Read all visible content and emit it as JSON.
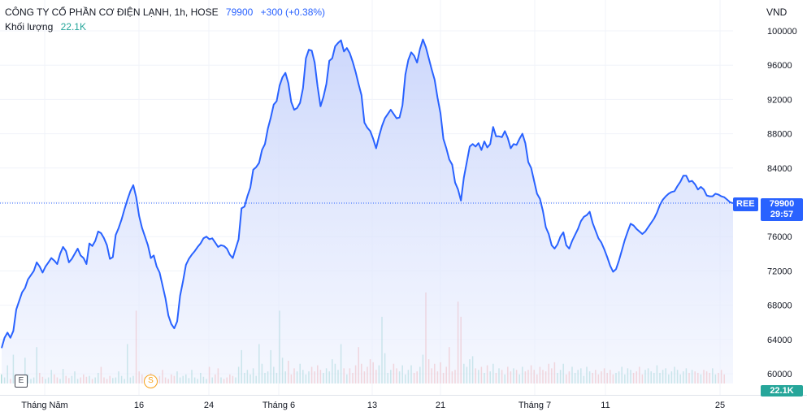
{
  "legend": {
    "title": "CÔNG TY CỔ PHẦN CƠ ĐIỆN LẠNH, 1h, HOSE",
    "price": "79900",
    "change": "+300 (+0.38%)",
    "volume_label": "Khối lượng",
    "volume_value": "22.1K"
  },
  "axis": {
    "currency": "VND"
  },
  "tags": {
    "symbol": "REE",
    "price": "79900",
    "countdown": "29:57",
    "volume": "22.1K"
  },
  "markers": {
    "earnings": "E",
    "split": "S"
  },
  "colors": {
    "line": "#2962ff",
    "area": "#dbe3fd",
    "vol_up": "#26a69a",
    "vol_down": "#ef5350",
    "grid": "#f0f3fa",
    "text": "#131722"
  },
  "chart_data": {
    "type": "area",
    "title": "CÔNG TY CỔ PHẦN CƠ ĐIỆN LẠNH, 1h, HOSE",
    "ylabel": "VND",
    "ylim": [
      58400,
      101500
    ],
    "y_ticks": [
      100000,
      96000,
      92000,
      88000,
      84000,
      80000,
      76000,
      72000,
      68000,
      64000,
      60000
    ],
    "x_ticks": [
      "Tháng Năm",
      "16",
      "24",
      "Tháng 6",
      "13",
      "21",
      "Tháng 7",
      "11",
      "25"
    ],
    "last_price": 79900,
    "grid": true,
    "price_series": [
      63000,
      64200,
      64800,
      64200,
      65000,
      67500,
      68500,
      69500,
      70000,
      71000,
      71500,
      72000,
      73000,
      72500,
      71800,
      72500,
      73000,
      73500,
      73200,
      72800,
      74000,
      74800,
      74300,
      73000,
      73400,
      74000,
      74600,
      73800,
      73500,
      72800,
      75200,
      74900,
      75500,
      76600,
      76400,
      75800,
      75000,
      73400,
      73600,
      76200,
      77000,
      78000,
      79200,
      80300,
      81300,
      82000,
      80600,
      78400,
      77000,
      76000,
      75000,
      73500,
      73800,
      72500,
      71800,
      70300,
      68800,
      66800,
      65800,
      65300,
      66100,
      69100,
      70800,
      72700,
      73400,
      73900,
      74300,
      74800,
      75200,
      75800,
      76000,
      75700,
      75800,
      75300,
      74800,
      75000,
      74900,
      74600,
      73900,
      73500,
      74600,
      75700,
      79300,
      79500,
      80700,
      81700,
      83800,
      84100,
      84600,
      86100,
      86800,
      88600,
      89900,
      91400,
      91800,
      93600,
      94600,
      95100,
      93900,
      91700,
      90800,
      91000,
      91600,
      93300,
      96800,
      97800,
      97700,
      96300,
      93500,
      91200,
      92300,
      93800,
      96500,
      96800,
      98200,
      98600,
      98900,
      97600,
      98000,
      97400,
      96400,
      95200,
      93800,
      92500,
      89300,
      88700,
      88300,
      87400,
      86300,
      87700,
      88900,
      89800,
      90300,
      90800,
      90300,
      89800,
      89900,
      91300,
      94900,
      96600,
      97500,
      97100,
      96300,
      97900,
      99000,
      98100,
      96800,
      95500,
      94300,
      92200,
      90400,
      87400,
      86300,
      85000,
      84400,
      82300,
      81500,
      80200,
      82900,
      84700,
      86500,
      86800,
      86500,
      86900,
      86100,
      87100,
      86400,
      86800,
      88800,
      87700,
      87700,
      87600,
      88300,
      87500,
      86300,
      86800,
      86700,
      87400,
      88000,
      86900,
      84700,
      84000,
      82500,
      81000,
      80400,
      79000,
      77100,
      76300,
      75000,
      74600,
      75100,
      76000,
      76500,
      75000,
      74600,
      75500,
      76200,
      76900,
      77800,
      78300,
      78500,
      78900,
      77600,
      76700,
      75800,
      75300,
      74500,
      73600,
      72600,
      71900,
      72200,
      73200,
      74400,
      75600,
      76600,
      77500,
      77300,
      76900,
      76600,
      76300,
      76600,
      77100,
      77600,
      78100,
      78800,
      79700,
      80300,
      80700,
      81000,
      81200,
      81300,
      81900,
      82400,
      83100,
      83100,
      82400,
      82500,
      82100,
      81500,
      81800,
      81500,
      80800,
      80700,
      80700,
      81000,
      80900,
      80700,
      80600,
      80300,
      80000,
      79900
    ],
    "volume_series": [
      3000,
      2000,
      6000,
      1500,
      9500,
      3000,
      1200,
      2500,
      8500,
      3000,
      1500,
      2000,
      12000,
      3500,
      2200,
      1500,
      2000,
      4500,
      3000,
      2000,
      1500,
      4800,
      2500,
      1800,
      2500,
      4000,
      1500,
      2000,
      3000,
      2200,
      2500,
      1500,
      2000,
      3500,
      5500,
      2000,
      1500,
      2500,
      1800,
      2000,
      4000,
      2500,
      1500,
      13000,
      2000,
      2500,
      24000,
      4000,
      3000,
      2000,
      1500,
      3500,
      2000,
      1500,
      2500,
      4500,
      2000,
      1500,
      3000,
      2500,
      4000,
      2000,
      2500,
      3000,
      1800,
      4500,
      2000,
      1500,
      3500,
      2200,
      1500,
      5500,
      2000,
      3000,
      5000,
      2000,
      1500,
      2000,
      3000,
      2500,
      2000,
      5500,
      11000,
      3500,
      4500,
      3000,
      5000,
      2500,
      13000,
      6500,
      3500,
      4000,
      11000,
      5500,
      3500,
      24000,
      8500,
      4000,
      7500,
      3000,
      5000,
      4000,
      6500,
      4500,
      3000,
      4000,
      5500,
      4000,
      6000,
      4500,
      3500,
      5000,
      4000,
      8000,
      6500,
      4500,
      13000,
      5000,
      3000,
      5000,
      3500,
      6000,
      12000,
      6500,
      4000,
      5500,
      8000,
      7000,
      4500,
      6000,
      22000,
      10000,
      3500,
      4500,
      6500,
      5000,
      4000,
      6000,
      3000,
      4500,
      6000,
      3500,
      4000,
      5500,
      9500,
      30000,
      8000,
      5000,
      6500,
      4000,
      7000,
      3500,
      5500,
      12000,
      4000,
      4500,
      27000,
      22000,
      6500,
      5500,
      8000,
      9000,
      5000,
      4500,
      5500,
      3500,
      6000,
      4000,
      6500,
      3500,
      5000,
      4500,
      3000,
      5500,
      4000,
      5000,
      4500,
      3000,
      5500,
      4000,
      4500,
      6000,
      4500,
      3000,
      5500,
      4500,
      4000,
      6500,
      5000,
      7000,
      3500,
      4500,
      6500,
      3000,
      4000,
      5500,
      3500,
      4500,
      5000,
      2500,
      5500,
      4000,
      3500,
      4500,
      3000,
      4000,
      5000,
      3500,
      4500,
      3000,
      3500,
      4000,
      5500,
      3000,
      5000,
      4500,
      3500,
      4000,
      5500,
      3000,
      4500,
      5000,
      4000,
      3500,
      6000,
      3500,
      4500,
      5000,
      3000,
      4000,
      5500,
      4500,
      3000,
      4000,
      5000,
      3500,
      4500,
      4000,
      3500,
      3000,
      4500,
      4000,
      3500,
      5000,
      3000,
      3500,
      4500,
      3000
    ]
  }
}
